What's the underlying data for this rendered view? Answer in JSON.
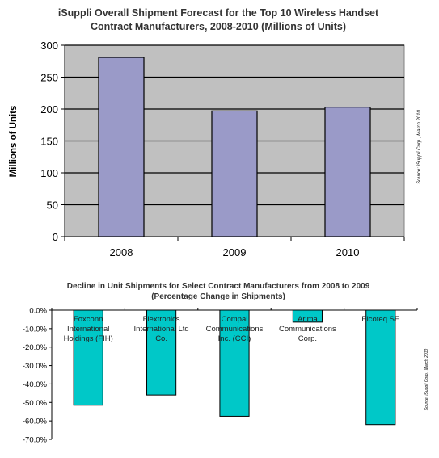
{
  "chart_data": [
    {
      "type": "bar",
      "title": "iSuppli Overall Shipment Forecast for the Top 10 Wireless Handset",
      "subtitle": "Contract Manufacturers, 2008-2010 (Millions of Units)",
      "ylabel": "Millions of Units",
      "xlabel": "",
      "source": "Source: iSuppli Corp., March 2010",
      "categories": [
        "2008",
        "2009",
        "2010"
      ],
      "values": [
        281,
        197,
        203
      ],
      "ylim": [
        0,
        300
      ],
      "yticks": [
        0,
        50,
        100,
        150,
        200,
        250,
        300
      ],
      "grid": true,
      "colors": {
        "bar": "#9a9ac8",
        "plot_bg": "#c0c0c0"
      }
    },
    {
      "type": "bar",
      "title": "Decline in Unit Shipments for Select Contract Manufacturers from 2008 to 2009",
      "subtitle": "(Percentage Change in Shipments)",
      "source": "Source: iSuppli Corp., March 2010",
      "categories": [
        "Foxconn International Holdings (FIH)",
        "Flextronics International Ltd Co.",
        "Compal Communications Inc. (CCI)",
        "Arima Communications Corp.",
        "Elcoteq SE"
      ],
      "category_lines": [
        [
          "Foxconn",
          "International",
          "Holdings (FIH)"
        ],
        [
          "Flextronics",
          "International Ltd",
          "Co."
        ],
        [
          "Compal",
          "Communications",
          "Inc. (CCI)"
        ],
        [
          "Arima",
          "Communications",
          "Corp."
        ],
        [
          "Elcoteq SE"
        ]
      ],
      "values": [
        -51.5,
        -46,
        -57.5,
        -6.5,
        -62
      ],
      "ylim": [
        -70,
        0
      ],
      "yticks": [
        "0.0%",
        "-10.0%",
        "-20.0%",
        "-30.0%",
        "-40.0%",
        "-50.0%",
        "-60.0%",
        "-70.0%"
      ],
      "grid": false,
      "colors": {
        "bar": "#00c8c8"
      }
    }
  ]
}
